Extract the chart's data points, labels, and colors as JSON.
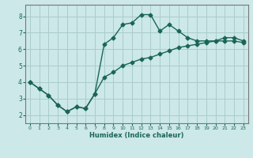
{
  "xlabel": "Humidex (Indice chaleur)",
  "bg_color": "#cce8e8",
  "grid_color": "#aacccc",
  "line_color": "#1a6655",
  "xlim": [
    -0.5,
    23.5
  ],
  "ylim": [
    1.5,
    8.7
  ],
  "xticks": [
    0,
    1,
    2,
    3,
    4,
    5,
    6,
    7,
    8,
    9,
    10,
    11,
    12,
    13,
    14,
    15,
    16,
    17,
    18,
    19,
    20,
    21,
    22,
    23
  ],
  "yticks": [
    2,
    3,
    4,
    5,
    6,
    7,
    8
  ],
  "line1_x": [
    0,
    1,
    2,
    3,
    4,
    5,
    6,
    7,
    8,
    9,
    10,
    11,
    12,
    13,
    14,
    15,
    16,
    17,
    18,
    19,
    20,
    21,
    22,
    23
  ],
  "line1_y": [
    4.0,
    3.6,
    3.2,
    2.6,
    2.2,
    2.5,
    2.4,
    3.3,
    4.3,
    4.6,
    5.0,
    5.2,
    5.4,
    5.5,
    5.7,
    5.9,
    6.1,
    6.2,
    6.3,
    6.4,
    6.5,
    6.5,
    6.5,
    6.4
  ],
  "line2_x": [
    0,
    1,
    2,
    3,
    4,
    5,
    6,
    7,
    8,
    9,
    10,
    11,
    12,
    13,
    14,
    15,
    16,
    17,
    18,
    19,
    20,
    21,
    22,
    23
  ],
  "line2_y": [
    4.0,
    3.6,
    3.2,
    2.6,
    2.2,
    2.5,
    2.4,
    3.3,
    6.3,
    6.7,
    7.5,
    7.6,
    8.1,
    8.1,
    7.1,
    7.5,
    7.1,
    6.7,
    6.5,
    6.5,
    6.5,
    6.7,
    6.7,
    6.5
  ],
  "marker": "D",
  "markersize": 2.5,
  "linewidth": 1.0
}
